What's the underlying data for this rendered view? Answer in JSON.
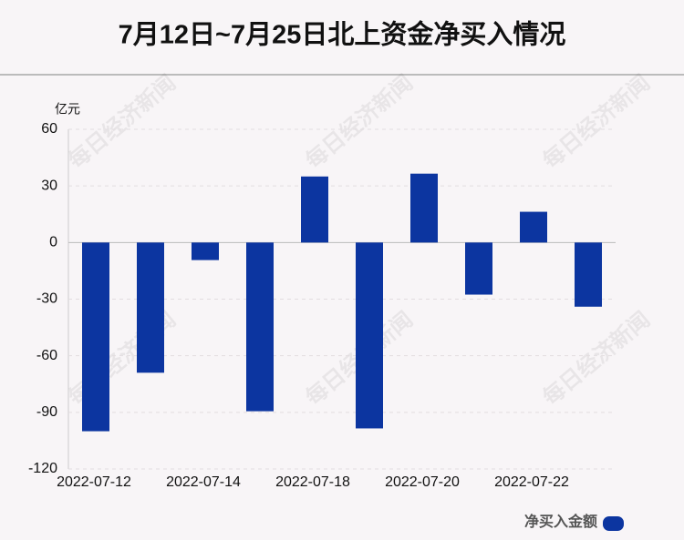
{
  "chart_data": {
    "type": "bar",
    "title": "7月12日~7月25日北上资金净买入情况",
    "y_unit": "亿元",
    "watermark": "每日经济新闻",
    "categories": [
      "2022-07-12",
      null,
      "2022-07-14",
      null,
      "2022-07-18",
      null,
      "2022-07-20",
      null,
      "2022-07-22",
      null
    ],
    "series": [
      {
        "name": "净买入金额",
        "color": "#0c35a0",
        "values": [
          -100,
          -69,
          -9.3,
          -89.4,
          35,
          -98.5,
          36.5,
          -27.6,
          16.3,
          -34
        ]
      }
    ],
    "ylim": [
      -120,
      60
    ],
    "yticks": [
      -120,
      -90,
      -60,
      -30,
      0,
      30,
      60
    ],
    "grid": true
  }
}
